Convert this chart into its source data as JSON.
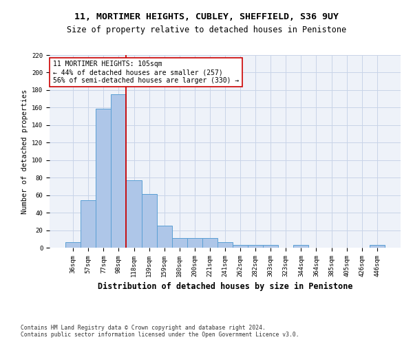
{
  "title": "11, MORTIMER HEIGHTS, CUBLEY, SHEFFIELD, S36 9UY",
  "subtitle": "Size of property relative to detached houses in Penistone",
  "xlabel": "Distribution of detached houses by size in Penistone",
  "ylabel": "Number of detached properties",
  "categories": [
    "36sqm",
    "57sqm",
    "77sqm",
    "98sqm",
    "118sqm",
    "139sqm",
    "159sqm",
    "180sqm",
    "200sqm",
    "221sqm",
    "241sqm",
    "262sqm",
    "282sqm",
    "303sqm",
    "323sqm",
    "344sqm",
    "364sqm",
    "385sqm",
    "405sqm",
    "426sqm",
    "446sqm"
  ],
  "values": [
    6,
    54,
    159,
    175,
    77,
    61,
    25,
    11,
    11,
    11,
    6,
    3,
    3,
    3,
    0,
    3,
    0,
    0,
    0,
    0,
    3
  ],
  "bar_color": "#aec6e8",
  "bar_edge_color": "#5a9fd4",
  "vline_x": 3.5,
  "vline_color": "#cc0000",
  "annotation_title": "11 MORTIMER HEIGHTS: 105sqm",
  "annotation_line1": "← 44% of detached houses are smaller (257)",
  "annotation_line2": "56% of semi-detached houses are larger (330) →",
  "footnote1": "Contains HM Land Registry data © Crown copyright and database right 2024.",
  "footnote2": "Contains public sector information licensed under the Open Government Licence v3.0.",
  "ylim": [
    0,
    220
  ],
  "yticks": [
    0,
    20,
    40,
    60,
    80,
    100,
    120,
    140,
    160,
    180,
    200,
    220
  ],
  "bg_color": "#eef2f9",
  "grid_color": "#c8d4e8",
  "title_fontsize": 9.5,
  "subtitle_fontsize": 8.5,
  "xlabel_fontsize": 8.5,
  "ylabel_fontsize": 7.5,
  "tick_fontsize": 6.5,
  "annotation_fontsize": 7.0,
  "footnote_fontsize": 5.8
}
